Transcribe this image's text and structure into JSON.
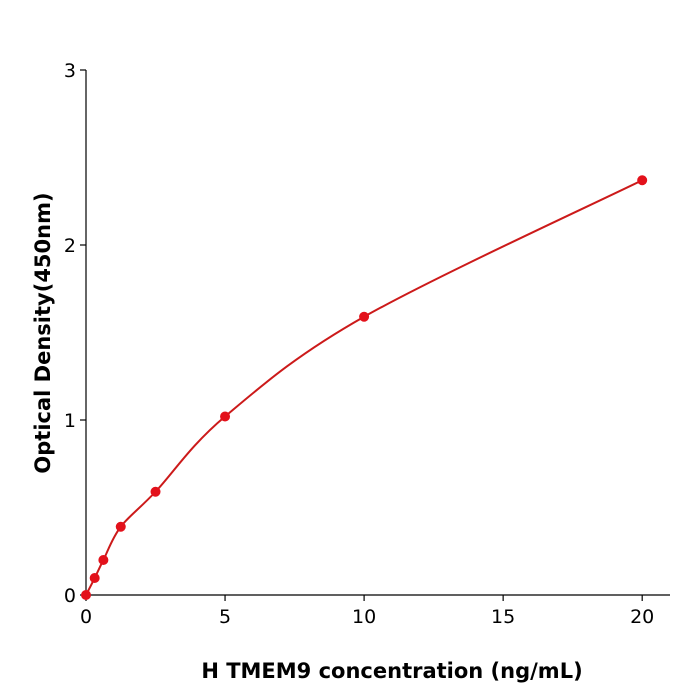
{
  "chart_data": {
    "type": "scatter",
    "x_label": "H  TMEM9 concentration (ng/mL)",
    "y_label": "Optical Density(450nm)",
    "x": [
      0,
      0.3125,
      0.625,
      1.25,
      2.5,
      5,
      10,
      20
    ],
    "values": [
      0.0,
      0.097,
      0.2,
      0.39,
      0.59,
      1.02,
      1.59,
      2.37
    ],
    "color": "#e3111b",
    "line_color": "#cc1a1a",
    "line": true,
    "xlim": [
      0,
      21
    ],
    "xticks": [
      0,
      5,
      10,
      15,
      20
    ],
    "ylim": [
      0,
      3
    ],
    "yticks": [
      0,
      1,
      2,
      3
    ]
  }
}
